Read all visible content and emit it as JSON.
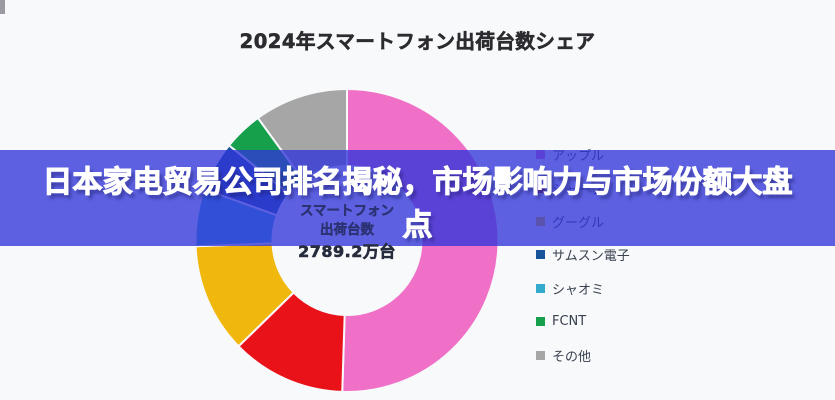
{
  "chart": {
    "title": "2024年スマートフォン出荷台数シェア",
    "center_label": {
      "line1": "スマートフォン",
      "line2": "出荷台数",
      "total": "2789.2万台"
    }
  },
  "chart_data": {
    "type": "donut",
    "title": "2024年スマートフォン出荷台数シェア",
    "center_text": [
      "スマートフォン",
      "出荷台数",
      "2789.2万台"
    ],
    "total_shipments_label": "2789.2万台",
    "start_angle_deg": 0,
    "direction": "clockwise",
    "legend_position": "right",
    "segments": [
      {
        "label": "アップル",
        "value": 50.5,
        "color": "#ef70c6"
      },
      {
        "label": "シャープ",
        "value": 12.2,
        "color": "#e91219"
      },
      {
        "label": "グーグル",
        "value": 11.7,
        "color": "#f0b70d"
      },
      {
        "label": "シャオミ",
        "value": 6.1,
        "color": "#33a9cc"
      },
      {
        "label": "サムスン電子",
        "value": 5.3,
        "color": "#17549a"
      },
      {
        "label": "FCNT",
        "value": 4.2,
        "color": "#16a04c"
      },
      {
        "label": "その他",
        "value": 10.0,
        "color": "#a6a6a6"
      }
    ]
  },
  "legend": {
    "items": [
      {
        "label": "アップル",
        "color": "#ef70c6"
      },
      {
        "label": "シャープ",
        "color": "#e91219"
      },
      {
        "label": "グーグル",
        "color": "#f0b70d"
      },
      {
        "label": "サムスン電子",
        "color": "#17549a"
      },
      {
        "label": "シャオミ",
        "color": "#33a9cc"
      },
      {
        "label": "FCNT",
        "color": "#16a04c"
      },
      {
        "label": "その他",
        "color": "#a6a6a6"
      }
    ]
  },
  "banner": {
    "line1": "日本家电贸易公司排名揭秘，市场影响力与市场份额大盘",
    "line2": "点",
    "text_color": "#ffffff"
  }
}
